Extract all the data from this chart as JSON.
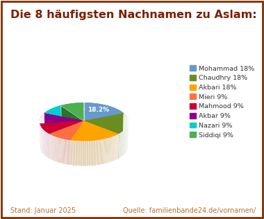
{
  "title": "Die 8 häufigsten Nachnamen zu Aslam:",
  "title_color": "#7B2000",
  "title_fontsize": 11.5,
  "labels": [
    "Mohammad",
    "Chaudhry",
    "Akbari",
    "Mieri",
    "Mahmood",
    "Akbar",
    "Nazari",
    "Siddiqi"
  ],
  "values": [
    18.2,
    18.2,
    18.2,
    9.1,
    9.1,
    9.1,
    9.1,
    9.1
  ],
  "colors": [
    "#6699CC",
    "#6B8E23",
    "#FFA500",
    "#FF7043",
    "#CC0033",
    "#8B008B",
    "#00CED1",
    "#4CAF50"
  ],
  "legend_labels": [
    "Mohammad 18%",
    "Chaudhry 18%",
    "Akbari 18%",
    "Mieri 9%",
    "Mahmood 9%",
    "Akbar 9%",
    "Nazari 9%",
    "Siddiqi 9%"
  ],
  "footer_left": "Stand: Januar 2025",
  "footer_right": "Quelle: familienbande24.de/vornamen/",
  "footer_color": "#B87333",
  "background_color": "#FFFFFF",
  "border_color": "#7B3000",
  "startangle": 90
}
